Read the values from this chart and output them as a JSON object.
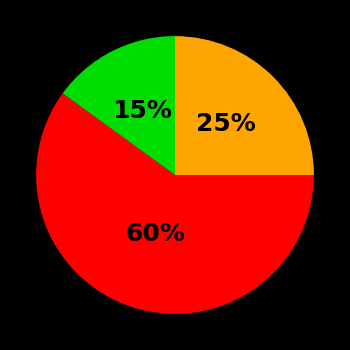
{
  "slices": [
    {
      "label": "25%",
      "value": 25,
      "color": "#ffa500"
    },
    {
      "label": "60%",
      "value": 60,
      "color": "#ff0000"
    },
    {
      "label": "15%",
      "value": 15,
      "color": "#00dd00"
    }
  ],
  "background_color": "#000000",
  "text_color": "#000000",
  "label_fontsize": 18,
  "label_fontweight": "bold",
  "startangle": 90,
  "figsize": [
    3.5,
    3.5
  ],
  "dpi": 100
}
